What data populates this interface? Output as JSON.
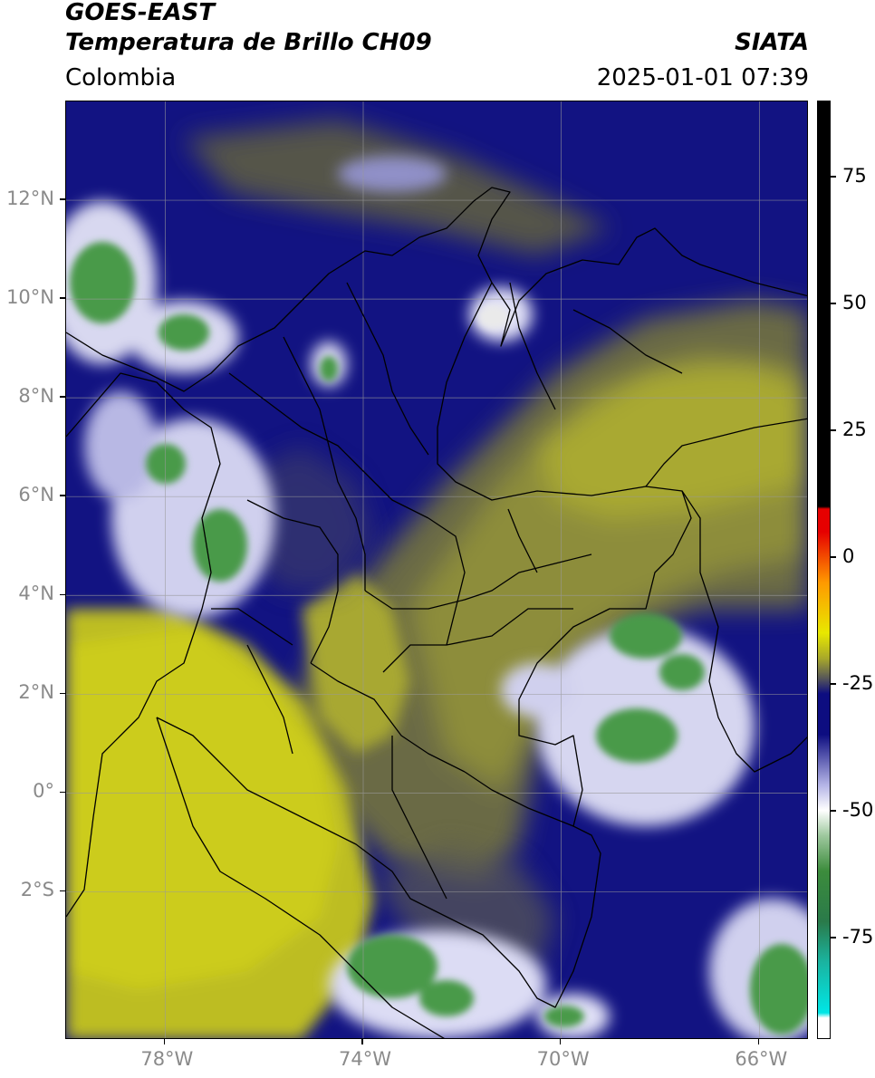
{
  "header": {
    "satellite": "GOES-EAST",
    "product": "Temperatura de Brillo CH09",
    "brand": "SIATA",
    "region": "Colombia",
    "datetime": "2025-01-01 07:39"
  },
  "map": {
    "lon_range": [
      -80,
      -65
    ],
    "lat_range": [
      -5,
      14
    ],
    "lat_ticks": [
      {
        "lat": 12,
        "label": "12°N"
      },
      {
        "lat": 10,
        "label": "10°N"
      },
      {
        "lat": 8,
        "label": "8°N"
      },
      {
        "lat": 6,
        "label": "6°N"
      },
      {
        "lat": 4,
        "label": "4°N"
      },
      {
        "lat": 2,
        "label": "2°N"
      },
      {
        "lat": 0,
        "label": "0°"
      },
      {
        "lat": -2,
        "label": "2°S"
      }
    ],
    "lon_ticks": [
      {
        "lon": -78,
        "label": "78°W"
      },
      {
        "lon": -74,
        "label": "74°W"
      },
      {
        "lon": -70,
        "label": "70°W"
      },
      {
        "lon": -66,
        "label": "66°W"
      }
    ]
  },
  "colorbar": {
    "range": [
      -95,
      90
    ],
    "ticks": [
      {
        "value": 75,
        "label": "75"
      },
      {
        "value": 50,
        "label": "50"
      },
      {
        "value": 25,
        "label": "25"
      },
      {
        "value": 0,
        "label": "0"
      },
      {
        "value": -25,
        "label": "-25"
      },
      {
        "value": -50,
        "label": "-50"
      },
      {
        "value": -75,
        "label": "-75"
      }
    ],
    "colors": {
      "warm_top": "#000000",
      "red": "#e60000",
      "orange": "#ff9900",
      "yellow": "#e8e800",
      "olive": "#a8a82a",
      "navy": "#0d0d80",
      "lavender": "#b4b4e6",
      "white": "#ffffff",
      "green": "#3c8c3c",
      "teal": "#1ab4a0",
      "cyan": "#00e6e6"
    }
  }
}
